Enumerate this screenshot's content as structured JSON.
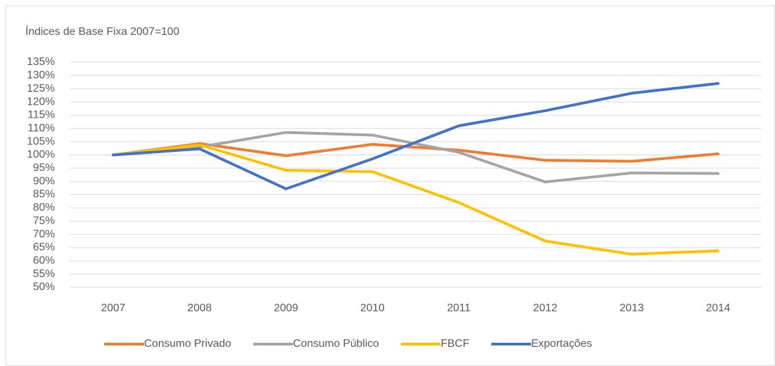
{
  "chart_data": {
    "type": "line",
    "title": "Índices de Base Fixa 2007=100",
    "categories": [
      "2007",
      "2008",
      "2009",
      "2010",
      "2011",
      "2012",
      "2013",
      "2014"
    ],
    "series": [
      {
        "name": "Consumo Privado",
        "color": "#ed7d31",
        "values": [
          100,
          104.3,
          99.7,
          104,
          101.8,
          98,
          97.6,
          100.4
        ]
      },
      {
        "name": "Consumo Público",
        "color": "#a5a5a5",
        "values": [
          100,
          103,
          108.5,
          107.5,
          101,
          89.8,
          93.2,
          93
        ]
      },
      {
        "name": "FBCF",
        "color": "#ffc000",
        "values": [
          100,
          103.8,
          94.2,
          93.7,
          82,
          67.5,
          62.5,
          63.8
        ]
      },
      {
        "name": "Exportações",
        "color": "#4472c4",
        "values": [
          100,
          102.3,
          87.2,
          98.5,
          111,
          116.7,
          123.3,
          127
        ]
      }
    ],
    "ylim": [
      50,
      135
    ],
    "yticks": [
      {
        "value": 50,
        "label": "50%"
      },
      {
        "value": 55,
        "label": "55%"
      },
      {
        "value": 60,
        "label": "60%"
      },
      {
        "value": 65,
        "label": "65%"
      },
      {
        "value": 70,
        "label": "70%"
      },
      {
        "value": 75,
        "label": "75%"
      },
      {
        "value": 80,
        "label": "80%"
      },
      {
        "value": 85,
        "label": "85%"
      },
      {
        "value": 90,
        "label": "90%"
      },
      {
        "value": 95,
        "label": "95%"
      },
      {
        "value": 100,
        "label": "100%"
      },
      {
        "value": 105,
        "label": "105%"
      },
      {
        "value": 110,
        "label": "110%"
      },
      {
        "value": 115,
        "label": "115%"
      },
      {
        "value": 120,
        "label": "120%"
      },
      {
        "value": 125,
        "label": "125%"
      },
      {
        "value": 130,
        "label": "130%"
      },
      {
        "value": 135,
        "label": "135%"
      }
    ],
    "grid": true,
    "legend": "bottom"
  }
}
